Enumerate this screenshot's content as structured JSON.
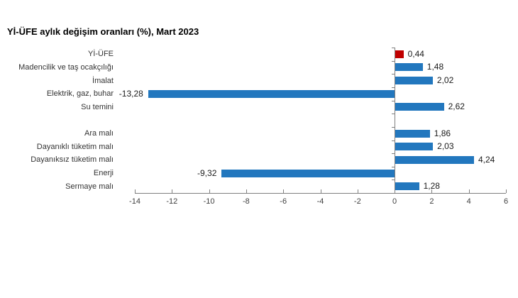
{
  "title": "Yİ-ÜFE aylık değişim oranları (%), Mart 2023",
  "colors": {
    "bar_blue": "#2277BE",
    "bar_red": "#C00000",
    "axis_line": "#7F7F7F",
    "tick_text": "#404040",
    "category_text": "#333333",
    "value_text": "#1A1A1A",
    "title_text": "#000000",
    "background": "#FFFFFF"
  },
  "chart_data": {
    "type": "bar",
    "orientation": "horizontal",
    "title": "Yİ-ÜFE aylık değişim oranları (%), Mart 2023",
    "categories": [
      "Yİ-ÜFE",
      "Madencilik ve taş ocakçılığı",
      "İmalat",
      "Elektrik, gaz, buhar",
      "Su temini",
      "",
      "Ara malı",
      "Dayanıklı tüketim malı",
      "Dayanıksız tüketim malı",
      "Enerji",
      "Sermaye malı"
    ],
    "values": [
      0.44,
      1.48,
      2.02,
      -13.28,
      2.62,
      null,
      1.86,
      2.03,
      4.24,
      -9.32,
      1.28
    ],
    "value_labels": [
      "0,44",
      "1,48",
      "2,02",
      "-13,28",
      "2,62",
      "",
      "1,86",
      "2,03",
      "4,24",
      "-9,32",
      "1,28"
    ],
    "highlight_index": 0,
    "xlabel": "",
    "ylabel": "",
    "xlim": [
      -14,
      6
    ],
    "xtick_step": 2,
    "xtick_labels": [
      "-14",
      "-12",
      "-10",
      "-8",
      "-6",
      "-4",
      "-2",
      "0",
      "2",
      "4",
      "6"
    ],
    "grid": false,
    "legend": "none",
    "decimal_separator": ","
  }
}
